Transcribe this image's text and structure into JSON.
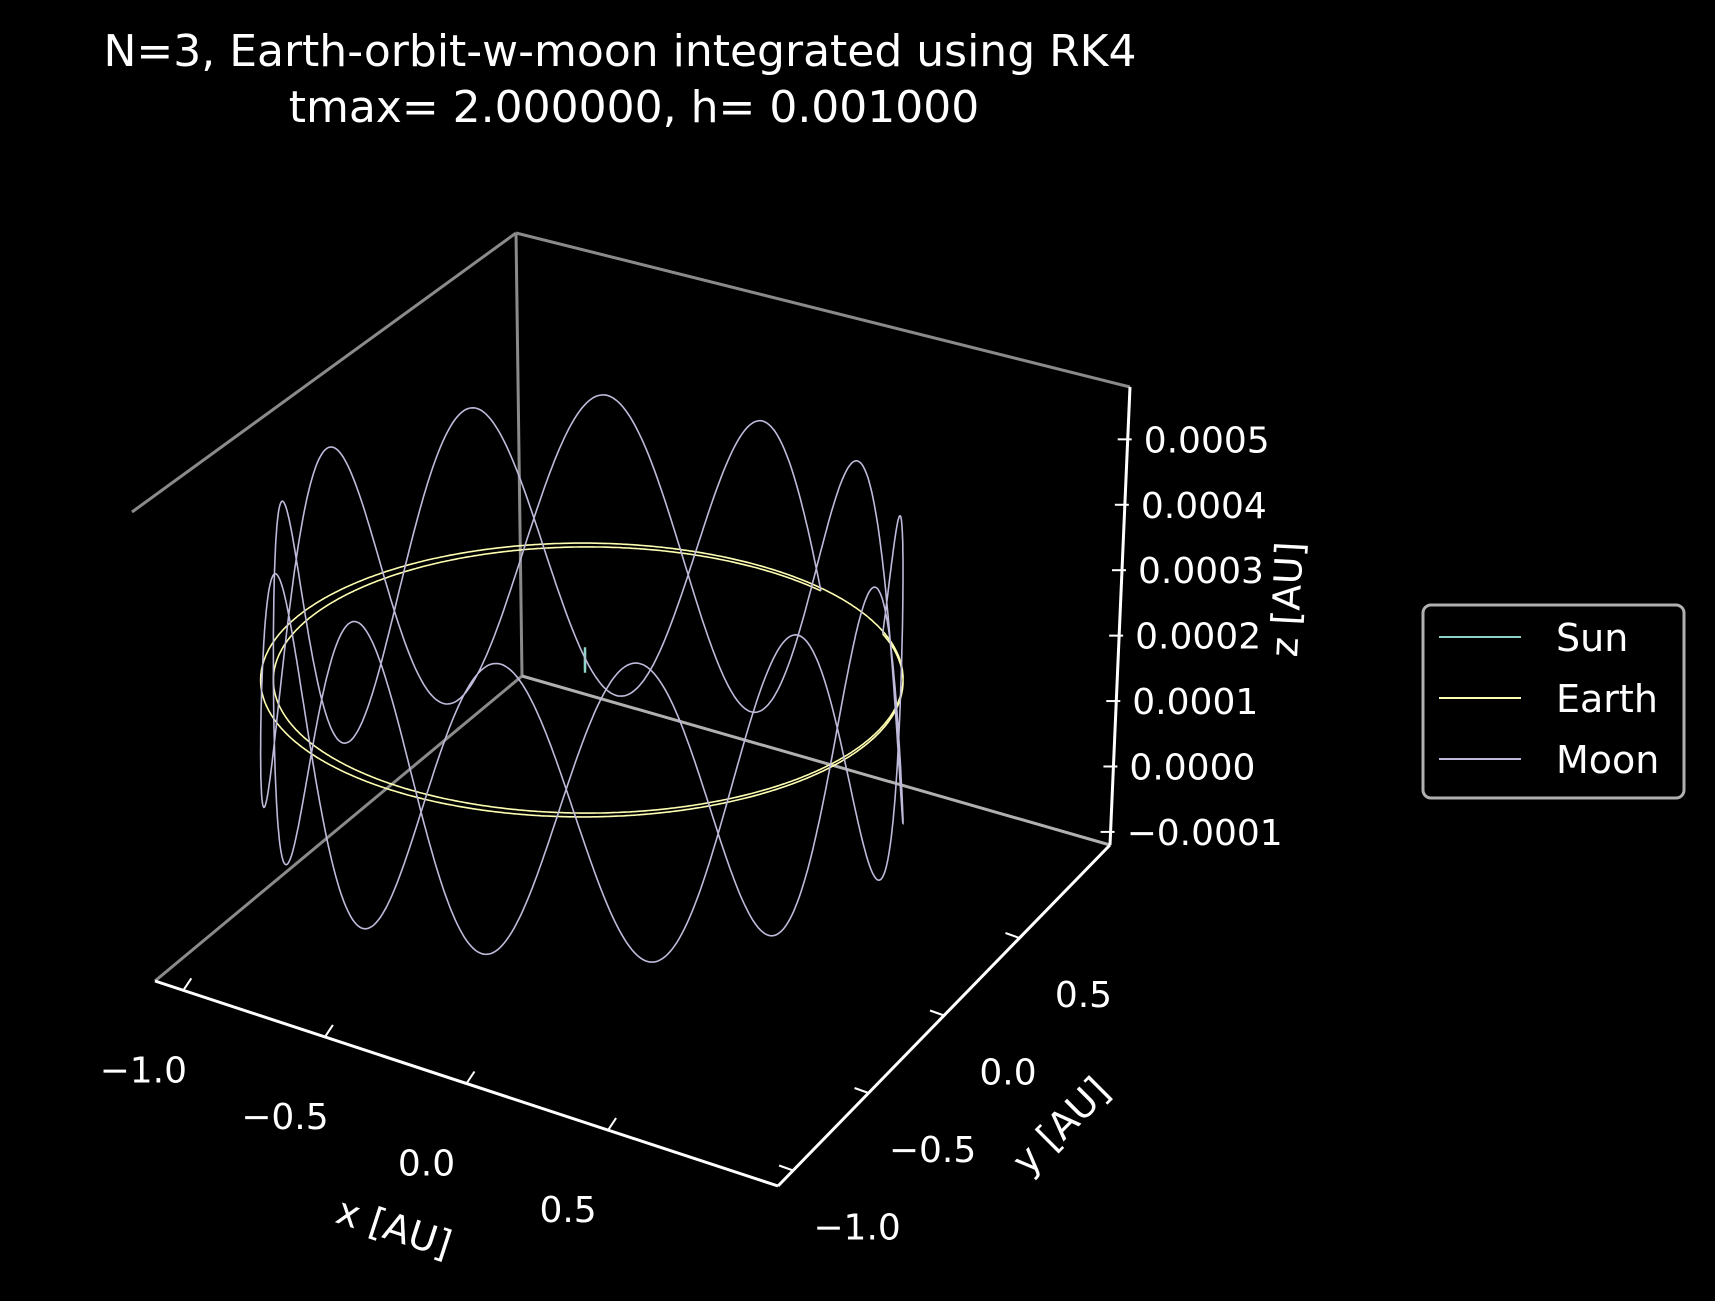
{
  "chart_data": {
    "type": "line3d",
    "title": "N=3, Earth-orbit-w-moon integrated using RK4",
    "subtitle": "tmax= 2.000000, h= 0.001000",
    "xlabel": "x [AU]",
    "ylabel": "y [AU]",
    "zlabel": "z [AU]",
    "xlim": [
      -1.1,
      1.1
    ],
    "ylim": [
      -1.1,
      1.1
    ],
    "zlim": [
      -0.00012,
      0.00058
    ],
    "x_ticks": [
      {
        "value": -1.0,
        "label": "−1.0"
      },
      {
        "value": -0.5,
        "label": "−0.5"
      },
      {
        "value": 0.0,
        "label": "0.0"
      },
      {
        "value": 0.5,
        "label": "0.5"
      }
    ],
    "y_ticks": [
      {
        "value": -1.0,
        "label": "−1.0"
      },
      {
        "value": -0.5,
        "label": "−0.5"
      },
      {
        "value": 0.0,
        "label": "0.0"
      },
      {
        "value": 0.5,
        "label": "0.5"
      }
    ],
    "z_ticks": [
      {
        "value": -0.0001,
        "label": "−0.0001"
      },
      {
        "value": 0.0,
        "label": "0.0000"
      },
      {
        "value": 0.0001,
        "label": "0.0001"
      },
      {
        "value": 0.0002,
        "label": "0.0002"
      },
      {
        "value": 0.0003,
        "label": "0.0003"
      },
      {
        "value": 0.0004,
        "label": "0.0004"
      },
      {
        "value": 0.0005,
        "label": "0.0005"
      }
    ],
    "legend_position": "right",
    "background": "#000000",
    "series": [
      {
        "name": "Sun",
        "color": "#8dd3c7",
        "orbit_radius_au": 3e-06,
        "revolutions": 2,
        "z_amplitude": 2e-05,
        "z_offset": 0.0001
      },
      {
        "name": "Earth",
        "color": "#ffffb3",
        "orbit_radius_au": 1.0,
        "revolutions": 2,
        "z_amplitude": 0.0,
        "z_offset": 0.0001
      },
      {
        "name": "Moon",
        "color": "#bebada",
        "orbit_radius_au": 1.0,
        "revolutions": 2,
        "z_amplitude": 0.00045,
        "z_offset": 0.0001,
        "z_cycles": 12.5
      }
    ]
  }
}
